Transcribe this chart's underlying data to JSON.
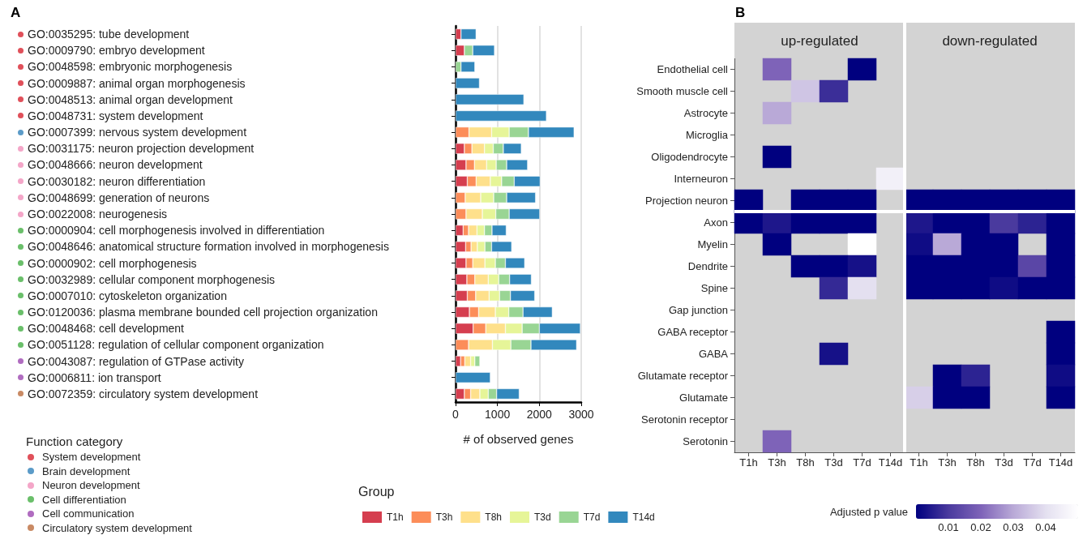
{
  "chart_data": [
    {
      "type": "bar",
      "title": "A",
      "xlabel": "# of observed genes",
      "legend_title": "Group",
      "orientation": "horizontal",
      "stacked": true,
      "xlim": [
        0,
        3000
      ],
      "xticks": [
        0,
        1000,
        2000,
        3000
      ],
      "grid": "x",
      "legend": "bottom",
      "categories": [
        "GO:0035295: tube development",
        "GO:0009790: embryo development",
        "GO:0048598: embryonic morphogenesis",
        "GO:0009887: animal organ morphogenesis",
        "GO:0048513: animal organ development",
        "GO:0048731: system development",
        "GO:0007399: nervous system development",
        "GO:0031175: neuron projection development",
        "GO:0048666: neuron development",
        "GO:0030182: neuron differentiation",
        "GO:0048699: generation of neurons",
        "GO:0022008: neurogenesis",
        "GO:0000904: cell morphogenesis involved in differentiation",
        "GO:0048646: anatomical structure formation involved in morphogenesis",
        "GO:0000902: cell morphogenesis",
        "GO:0032989: cellular component morphogenesis",
        "GO:0007010: cytoskeleton organization",
        "GO:0120036: plasma membrane bounded cell projection organization",
        "GO:0048468: cell development",
        "GO:0051128: regulation of cellular component organization",
        "GO:0043087: regulation of GTPase activity",
        "GO:0006811: ion transport",
        "GO:0072359: circulatory system development"
      ],
      "series": [
        {
          "name": "T1h",
          "color": "#d53e4f",
          "values": [
            130,
            210,
            null,
            null,
            null,
            null,
            null,
            210,
            250,
            280,
            null,
            null,
            180,
            240,
            250,
            270,
            280,
            330,
            420,
            null,
            120,
            null,
            210
          ]
        },
        {
          "name": "T3h",
          "color": "#fc8d59",
          "values": [
            null,
            null,
            null,
            null,
            null,
            null,
            320,
            180,
            200,
            210,
            230,
            250,
            130,
            130,
            160,
            190,
            200,
            220,
            300,
            310,
            100,
            null,
            150
          ]
        },
        {
          "name": "T8h",
          "color": "#fee08b",
          "values": [
            null,
            null,
            null,
            null,
            null,
            null,
            540,
            300,
            290,
            340,
            370,
            390,
            200,
            150,
            290,
            320,
            320,
            400,
            470,
            570,
            140,
            null,
            220
          ]
        },
        {
          "name": "T3d",
          "color": "#e6f598",
          "values": [
            null,
            null,
            null,
            null,
            null,
            null,
            420,
            210,
            230,
            270,
            310,
            320,
            180,
            180,
            250,
            250,
            250,
            320,
            400,
            440,
            100,
            null,
            200
          ]
        },
        {
          "name": "T7d",
          "color": "#99d594",
          "values": [
            null,
            200,
            130,
            null,
            null,
            null,
            460,
            240,
            250,
            300,
            310,
            320,
            180,
            160,
            240,
            260,
            260,
            340,
            410,
            480,
            120,
            null,
            200
          ]
        },
        {
          "name": "T14d",
          "color": "#3288bd",
          "values": [
            360,
            520,
            330,
            570,
            1630,
            2170,
            1090,
            430,
            500,
            620,
            690,
            730,
            340,
            480,
            460,
            520,
            580,
            700,
            980,
            1090,
            null,
            830,
            540
          ]
        }
      ]
    },
    {
      "type": "other",
      "title": "Function category",
      "categories": [
        "System development",
        "Brain development",
        "Neuron development",
        "Cell differentiation",
        "Cell communication",
        "Circulatory system development"
      ],
      "colors": [
        "#e0505a",
        "#5b9bc8",
        "#f4a6c8",
        "#6abf6a",
        "#b06cc0",
        "#c98a64"
      ]
    },
    {
      "type": "heatmap",
      "title": "B",
      "annotations": [
        "up-regulated",
        "down-regulated"
      ],
      "clabel": "Adjusted p value",
      "clim": [
        0,
        0.05
      ],
      "cticks": [
        0.01,
        0.02,
        0.03,
        0.04
      ],
      "categories": [
        "T1h",
        "T3h",
        "T8h",
        "T3d",
        "T7d",
        "T14d",
        "T1h",
        "T3h",
        "T8h",
        "T3d",
        "T7d",
        "T14d"
      ],
      "y_categories": [
        "Endothelial cell",
        "Smooth muscle cell",
        "Astrocyte",
        "Microglia",
        "Oligodendrocyte",
        "Interneuron",
        "Projection neuron",
        "Axon",
        "Myelin",
        "Dendrite",
        "Spine",
        "Gap junction",
        "GABA receptor",
        "GABA",
        "Glutamate receptor",
        "Glutamate",
        "Serotonin receptor",
        "Serotonin"
      ],
      "cells": [
        [
          null,
          0.02,
          null,
          null,
          0,
          null,
          null,
          null,
          null,
          null,
          null,
          null
        ],
        [
          null,
          null,
          0.035,
          0.008,
          null,
          null,
          null,
          null,
          null,
          null,
          null,
          null
        ],
        [
          null,
          0.03,
          null,
          null,
          null,
          null,
          null,
          null,
          null,
          null,
          null,
          null
        ],
        [
          null,
          null,
          null,
          null,
          null,
          null,
          null,
          null,
          null,
          null,
          null,
          null
        ],
        [
          null,
          0,
          null,
          null,
          null,
          null,
          null,
          null,
          null,
          null,
          null,
          null
        ],
        [
          null,
          null,
          null,
          null,
          null,
          0.045,
          null,
          null,
          null,
          null,
          null,
          null
        ],
        [
          0,
          null,
          0,
          0,
          0,
          null,
          0,
          0,
          0,
          0,
          0,
          0
        ],
        [
          0,
          0.004,
          0,
          0,
          0,
          null,
          0.004,
          0,
          0,
          0.01,
          0.006,
          0
        ],
        [
          null,
          0,
          null,
          null,
          0.05,
          null,
          0.002,
          0.03,
          0,
          0,
          null,
          0
        ],
        [
          null,
          null,
          0,
          0,
          0.003,
          null,
          0,
          0,
          0,
          0,
          0.013,
          0
        ],
        [
          null,
          null,
          null,
          0.007,
          0.04,
          null,
          0,
          0,
          0,
          0.002,
          0,
          0
        ],
        [
          null,
          null,
          null,
          null,
          null,
          null,
          null,
          null,
          null,
          null,
          null,
          null
        ],
        [
          null,
          null,
          null,
          null,
          null,
          null,
          null,
          null,
          null,
          null,
          null,
          0
        ],
        [
          null,
          null,
          null,
          0.003,
          null,
          null,
          null,
          null,
          null,
          null,
          null,
          0
        ],
        [
          null,
          null,
          null,
          null,
          null,
          null,
          null,
          0,
          0.006,
          null,
          null,
          0.002
        ],
        [
          null,
          null,
          null,
          null,
          null,
          null,
          0.037,
          0,
          0,
          null,
          null,
          0
        ],
        [
          null,
          null,
          null,
          null,
          null,
          null,
          null,
          null,
          null,
          null,
          null,
          null
        ],
        [
          null,
          0.02,
          null,
          null,
          null,
          null,
          null,
          null,
          null,
          null,
          null,
          null
        ]
      ]
    }
  ]
}
